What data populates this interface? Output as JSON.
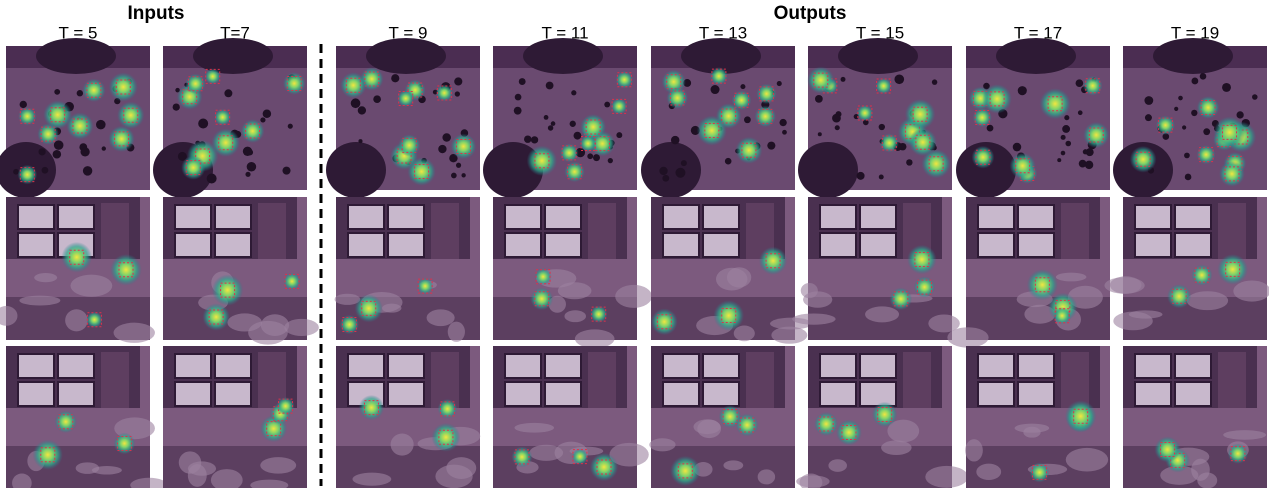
{
  "header": {
    "inputs": "Inputs",
    "outputs": "Outputs"
  },
  "columns": [
    "T = 5",
    "T=7",
    "T = 9",
    "T = 11",
    "T = 13",
    "T = 15",
    "T = 17",
    "T = 19"
  ]
}
